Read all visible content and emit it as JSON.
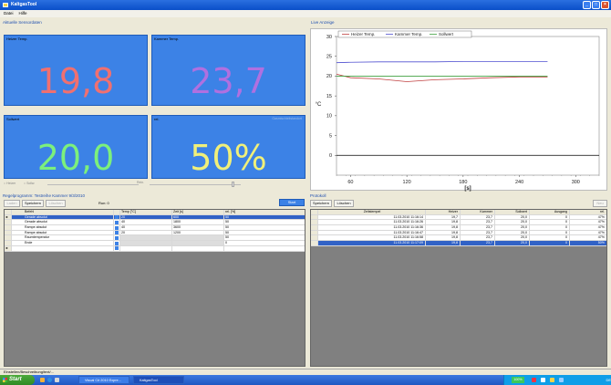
{
  "window": {
    "title": "KaltgasTool"
  },
  "menu": [
    "Datei",
    "Hilfe"
  ],
  "left_group": {
    "label": "Aktuelle Sensordaten"
  },
  "tiles": [
    {
      "label": "Heizer Temp.",
      "value": "19,8",
      "color": "#f07070"
    },
    {
      "label": "Kammer Temp.",
      "value": "23,7",
      "color": "#b070e0"
    },
    {
      "label": "Sollwert",
      "value": "20,0",
      "color": "#7cf07c"
    },
    {
      "label": "rel.",
      "value": "50%",
      "color": "#f0f07a",
      "sub": "Gasmischleitstandort"
    }
  ],
  "sliders": {
    "left_a": "Heizer",
    "left_b": "Sollw.",
    "right": "Rein."
  },
  "chart_group": {
    "label": "Live Anzeige"
  },
  "chart_data": {
    "type": "line",
    "ylabel": "°C",
    "xlabel": "[s]",
    "ylim": [
      -5,
      30
    ],
    "xlim": [
      45,
      325
    ],
    "yticks": [
      0,
      5,
      10,
      15,
      20,
      25,
      30
    ],
    "xticks": [
      60,
      120,
      180,
      240,
      300
    ],
    "legend_position": "top-left",
    "series": [
      {
        "name": "Heizer Temp.",
        "color": "#c04040",
        "x": [
          45,
          60,
          90,
          120,
          150,
          180,
          210,
          240,
          270
        ],
        "y": [
          20.5,
          19.6,
          19.3,
          18.6,
          19.1,
          19.3,
          19.6,
          19.8,
          19.8
        ]
      },
      {
        "name": "Kammer Temp.",
        "color": "#5050d0",
        "x": [
          45,
          60,
          90,
          120,
          150,
          180,
          210,
          240,
          270
        ],
        "y": [
          23.4,
          23.5,
          23.6,
          23.6,
          23.6,
          23.7,
          23.7,
          23.7,
          23.7
        ]
      },
      {
        "name": "Sollwert",
        "color": "#40a040",
        "x": [
          45,
          270
        ],
        "y": [
          20,
          20
        ]
      },
      {
        "name": "",
        "color": "#000000",
        "x": [
          45,
          325
        ],
        "y": [
          0,
          0
        ]
      }
    ]
  },
  "regel_group": {
    "label": "Regelprogramm: Testreihe Kammer 9/3/2010",
    "buttons": {
      "laden": "Laden",
      "speichern": "Speichern",
      "loeschen": "Löschen"
    },
    "run": "Run: 0",
    "start": "Start"
  },
  "regel_table": {
    "columns": [
      "Befehl",
      "Temp [°C]",
      "Zeit [s]",
      "rel. [%]"
    ],
    "rows": [
      {
        "befehl": "Gerade absolut",
        "temp": "20",
        "zeit": "600",
        "rel": "50",
        "selected": true,
        "marker": "►"
      },
      {
        "befehl": "Gerade absolut",
        "temp": "40",
        "zeit": "1800",
        "rel": "50"
      },
      {
        "befehl": "Rampe absolut",
        "temp": "40",
        "zeit": "3600",
        "rel": "50"
      },
      {
        "befehl": "Rampe absolut",
        "temp": "20",
        "zeit": "1200",
        "rel": "50"
      },
      {
        "befehl": "Raumtemperatur",
        "temp": "",
        "zeit": "",
        "rel": "50",
        "gray": true
      },
      {
        "befehl": "Ende",
        "temp": "",
        "zeit": "",
        "rel": "0",
        "gray": true
      },
      {
        "befehl": "",
        "temp": "",
        "zeit": "",
        "rel": "",
        "marker": "►"
      }
    ]
  },
  "protokoll_group": {
    "label": "Protokoll",
    "buttons": {
      "speichern": "Speichern",
      "loeschen": "Löschen",
      "right": "Neu"
    }
  },
  "protokoll_table": {
    "columns": [
      "Zeitstempel",
      "Heizer",
      "Kammer",
      "Sollwert",
      "Ausgang",
      "rel."
    ],
    "rows": [
      {
        "ts": "11.03.2010 11:16:14",
        "heizer": "19,7",
        "kammer": "23,7",
        "soll": "20,0",
        "aus": "0",
        "rel": "47%"
      },
      {
        "ts": "11.03.2010 11:16:26",
        "heizer": "19,8",
        "kammer": "23,7",
        "soll": "20,0",
        "aus": "0",
        "rel": "47%"
      },
      {
        "ts": "11.03.2010 11:16:36",
        "heizer": "19,8",
        "kammer": "23,7",
        "soll": "20,0",
        "aus": "0",
        "rel": "47%"
      },
      {
        "ts": "11.03.2010 11:16:47",
        "heizer": "19,8",
        "kammer": "23,7",
        "soll": "20,0",
        "aus": "0",
        "rel": "47%"
      },
      {
        "ts": "11.03.2010 11:16:58",
        "heizer": "19,8",
        "kammer": "23,7",
        "soll": "20,0",
        "aus": "0",
        "rel": "47%"
      },
      {
        "ts": "11.03.2010 11:17:09",
        "heizer": "19,8",
        "kammer": "23,7",
        "soll": "20,0",
        "aus": "0",
        "rel": "50%",
        "selected": true
      }
    ]
  },
  "status": {
    "text": "Einstellen/Beschreibung/text/..."
  },
  "taskbar": {
    "start": "Start",
    "items": [
      "Visual C# 2010 Expre...",
      "KaltgasTool"
    ],
    "tray_zoom": "100%",
    "lang": "DE"
  }
}
